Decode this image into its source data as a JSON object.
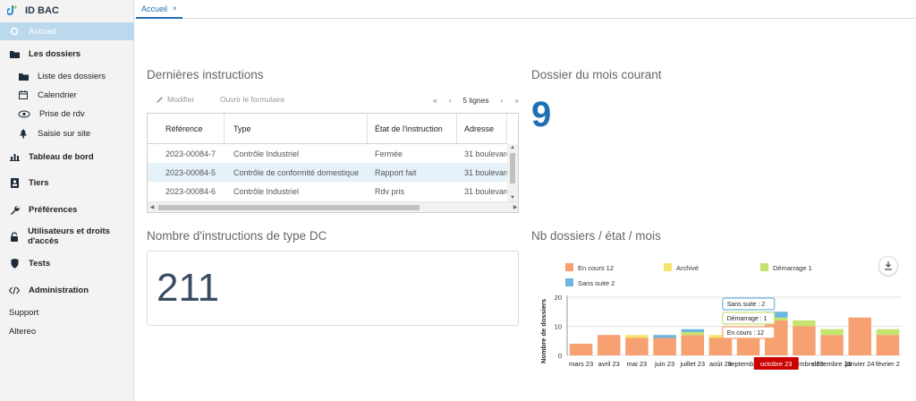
{
  "app": {
    "name": "ID BAC"
  },
  "sidebar": {
    "items": [
      {
        "label": "Accueil",
        "icon": "circle-icon"
      },
      {
        "label": "Les dossiers",
        "icon": "folder-icon"
      },
      {
        "label": "Liste des dossiers",
        "icon": "folder-icon"
      },
      {
        "label": "Calendrier",
        "icon": "calendar-icon"
      },
      {
        "label": "Prise de rdv",
        "icon": "eye-icon"
      },
      {
        "label": "Saisie sur site",
        "icon": "tree-icon"
      },
      {
        "label": "Tableau de bord",
        "icon": "bar-chart-icon"
      },
      {
        "label": "Tiers",
        "icon": "id-card-icon"
      },
      {
        "label": "Préférences",
        "icon": "wrench-icon"
      },
      {
        "label": "Utilisateurs et droits d'accès",
        "icon": "lock-icon"
      },
      {
        "label": "Tests",
        "icon": "shield-icon"
      },
      {
        "label": "Administration",
        "icon": "code-icon"
      },
      {
        "label": "Support"
      },
      {
        "label": "Altereo"
      }
    ]
  },
  "tabs": [
    {
      "label": "Accueil",
      "close": "×"
    }
  ],
  "instructions": {
    "title": "Dernières instructions",
    "modify_label": "Modifier",
    "open_form_label": "Ouvrir le formulaire",
    "pager": {
      "first": "«",
      "prev": "‹",
      "summary": "5 lignes",
      "next": "›",
      "last": "»"
    },
    "columns": [
      "Référence",
      "Type",
      "État de l'instruction",
      "Adresse"
    ],
    "rows": [
      [
        "2023-00084-7",
        "Contrôle Industriel",
        "Fermée",
        "31 boulevard"
      ],
      [
        "2023-00084-5",
        "Contrôle de conformité domestique",
        "Rapport fait",
        "31 boulevard"
      ],
      [
        "2023-00084-6",
        "Contrôle Industriel",
        "Rdv pris",
        "31 boulevard"
      ]
    ],
    "selected_row": 1
  },
  "dossier_mois": {
    "title": "Dossier du mois courant",
    "value": "9"
  },
  "instructions_dc": {
    "title": "Nombre d'instructions de type DC",
    "value": "211"
  },
  "chart_title": "Nb dossiers / état / mois",
  "colors": {
    "en_cours": "#f7a072",
    "archive": "#f9e46b",
    "demarrage": "#c5e36f",
    "sans_suite": "#6cb6e0",
    "accent": "#1f6fb5",
    "tooltip_red": "#cc0000"
  },
  "chart_data": {
    "type": "bar",
    "stacked": true,
    "ylabel": "Nombre de dossiers",
    "yticks": [
      0,
      10,
      20
    ],
    "ylim": [
      0,
      20
    ],
    "categories": [
      "mars 23",
      "avril 23",
      "mai 23",
      "juin 23",
      "juillet 23",
      "août 23",
      "septembre 23",
      "octobre 23",
      "novembre 23",
      "décembre 23",
      "janvier 24",
      "février 2"
    ],
    "series": [
      {
        "name": "En cours",
        "legend": "En cours  12",
        "values": [
          4,
          7,
          6,
          6,
          7,
          6,
          7,
          12,
          10,
          7,
          13,
          7
        ]
      },
      {
        "name": "Archivé",
        "legend": "Archivé",
        "values": [
          0,
          0,
          1,
          0,
          0,
          1,
          0,
          0,
          0,
          0,
          0,
          0
        ]
      },
      {
        "name": "Démarrage",
        "legend": "Démarrage  1",
        "values": [
          0,
          0,
          0,
          0,
          1,
          0,
          0,
          1,
          2,
          2,
          0,
          2
        ]
      },
      {
        "name": "Sans suite",
        "legend": "Sans suite  2",
        "values": [
          0,
          0,
          0,
          1,
          1,
          0,
          0,
          2,
          0,
          0,
          0,
          0
        ]
      }
    ],
    "highlight_category": "octobre 23",
    "tooltips": [
      "Sans suite : 2",
      "Démarrage : 1",
      "En cours : 12"
    ]
  }
}
